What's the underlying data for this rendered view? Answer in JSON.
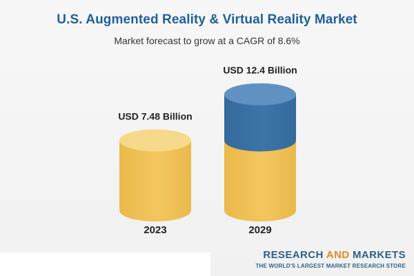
{
  "title": "U.S. Augmented Reality & Virtual Reality Market",
  "subtitle": "Market forecast to grow at a CAGR of 8.6%",
  "brand": {
    "name_part1": "RESEARCH ",
    "name_part2": "AND",
    "name_part3": " MARKETS",
    "tagline": "THE WORLD'S LARGEST MARKET RESEARCH STORE"
  },
  "colors": {
    "title": "#1f5f9a",
    "base_fill": "#f3c65f",
    "base_top": "#f7d98b",
    "growth_fill": "#3f74a8",
    "growth_top": "#5f92c2",
    "brand_accent": "#e08b23"
  },
  "chart_data": {
    "type": "bar",
    "style": "cylinder",
    "categories": [
      "2023",
      "2029"
    ],
    "values": [
      7.48,
      12.4
    ],
    "value_labels": [
      "USD 7.48 Billion",
      "USD 12.4 Billion"
    ],
    "unit": "USD Billion",
    "cagr": "8.6%",
    "ylim": [
      0,
      14
    ],
    "grid": false,
    "legend": "none"
  }
}
